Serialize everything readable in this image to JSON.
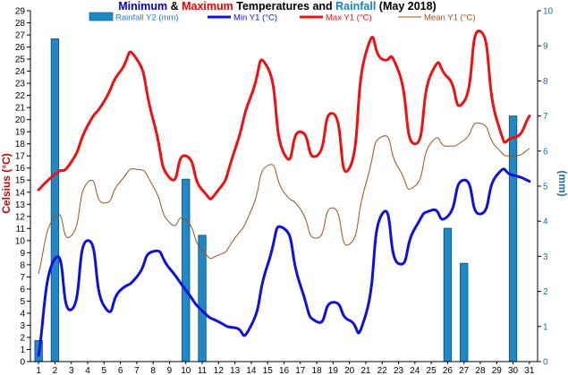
{
  "chart_data": {
    "type": "line",
    "title_parts": [
      {
        "text": "Minimum",
        "color": "#0000cc"
      },
      {
        "text": " & ",
        "color": "#000000"
      },
      {
        "text": "Maximum",
        "color": "#ee0000"
      },
      {
        "text": " Temperatures and ",
        "color": "#000000"
      },
      {
        "text": "Rainfall",
        "color": "#1f7fbf"
      },
      {
        "text": " (May 2018)",
        "color": "#000000"
      }
    ],
    "ylabel_left": "Celsius (°C)",
    "ylabel_right": "(mm)",
    "x": [
      1,
      2,
      3,
      4,
      5,
      6,
      7,
      8,
      9,
      10,
      11,
      12,
      13,
      14,
      15,
      16,
      17,
      18,
      19,
      20,
      21,
      22,
      23,
      24,
      25,
      26,
      27,
      28,
      29,
      30,
      31
    ],
    "ylim_left": [
      0,
      29
    ],
    "ylim_right": [
      0,
      10
    ],
    "yticks_left": [
      0,
      1,
      2,
      3,
      4,
      5,
      6,
      7,
      8,
      9,
      10,
      11,
      12,
      13,
      14,
      15,
      16,
      17,
      18,
      19,
      20,
      21,
      22,
      23,
      24,
      25,
      26,
      27,
      28,
      29
    ],
    "yticks_right": [
      0,
      1,
      2,
      3,
      4,
      5,
      6,
      7,
      8,
      9,
      10
    ],
    "series": [
      {
        "name": "Rainfall Y2 (mm)",
        "kind": "bar",
        "axis": "right",
        "color": "#1e88c8",
        "values": [
          0.6,
          9.2,
          0,
          0,
          0,
          0,
          0,
          0,
          0,
          5.2,
          3.6,
          0,
          0,
          0,
          0,
          0,
          0,
          0,
          0,
          0,
          0,
          0,
          0,
          0,
          0,
          3.8,
          2.8,
          0,
          0,
          7.0,
          0
        ]
      },
      {
        "name": "Min Y1 (°C)",
        "kind": "line",
        "axis": "left",
        "color": "#1010dd",
        "width": 3,
        "values": [
          0.5,
          8.5,
          4.3,
          10.0,
          4.6,
          5.9,
          7.0,
          9.1,
          7.7,
          5.9,
          4.2,
          3.3,
          2.8,
          3.0,
          8.0,
          11.0,
          6.3,
          3.3,
          4.9,
          3.4,
          3.9,
          12.2,
          8.1,
          11.0,
          12.5,
          12.0,
          15.0,
          12.2,
          15.4,
          15.4,
          14.9
        ]
      },
      {
        "name": "Max Y1 (°C)",
        "kind": "line",
        "axis": "left",
        "color": "#ee1111",
        "width": 3,
        "values": [
          14.2,
          15.5,
          16.5,
          19.5,
          21.5,
          24.0,
          25.0,
          20.0,
          15.2,
          17.0,
          14.2,
          14.2,
          17.5,
          22.0,
          24.3,
          17.2,
          19.0,
          17.0,
          20.5,
          16.0,
          25.5,
          25.0,
          24.0,
          18.0,
          23.8,
          23.5,
          21.5,
          27.3,
          20.0,
          18.5,
          20.3
        ]
      },
      {
        "name": "Mean Y1 (°C)",
        "kind": "line",
        "axis": "left",
        "color": "#a0501e",
        "width": 1,
        "values": [
          7.3,
          12.0,
          10.4,
          14.8,
          13.1,
          14.9,
          15.9,
          14.5,
          11.5,
          11.7,
          9.2,
          8.8,
          10.2,
          12.5,
          16.2,
          14.0,
          12.6,
          10.2,
          12.7,
          9.7,
          14.7,
          18.6,
          16.0,
          14.5,
          18.1,
          17.8,
          18.3,
          19.7,
          17.7,
          17.0,
          17.6
        ]
      }
    ]
  }
}
